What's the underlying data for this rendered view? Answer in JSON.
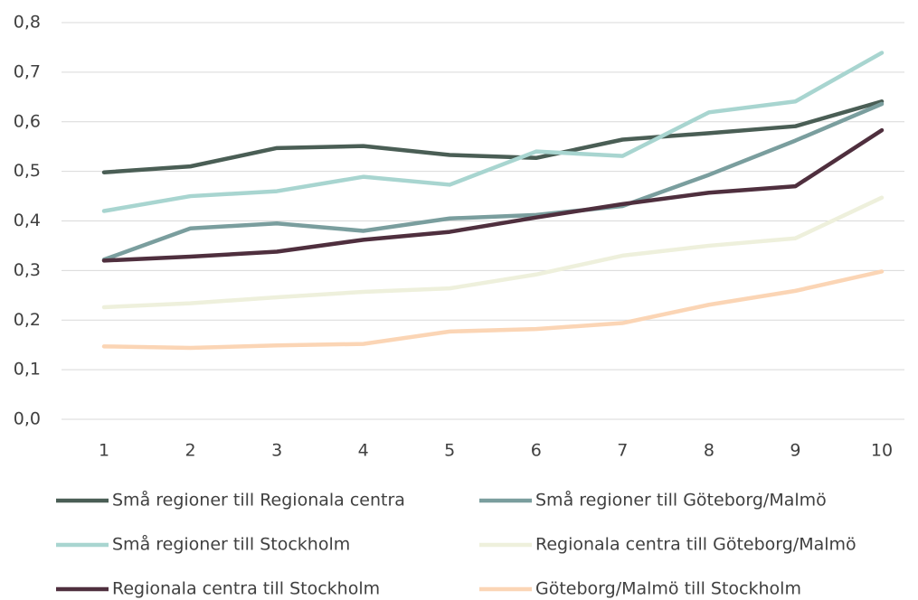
{
  "chart_data": {
    "type": "line",
    "categories": [
      "1",
      "2",
      "3",
      "4",
      "5",
      "6",
      "7",
      "8",
      "9",
      "10"
    ],
    "ylim": [
      0,
      0.8
    ],
    "yticks": [
      {
        "value": 0,
        "label": "0,0"
      },
      {
        "value": 0.1,
        "label": "0,1"
      },
      {
        "value": 0.2,
        "label": "0,2"
      },
      {
        "value": 0.3,
        "label": "0,3"
      },
      {
        "value": 0.4,
        "label": "0,4"
      },
      {
        "value": 0.5,
        "label": "0,5"
      },
      {
        "value": 0.6,
        "label": "0,6"
      },
      {
        "value": 0.7,
        "label": "0,7"
      },
      {
        "value": 0.8,
        "label": "0,8"
      }
    ],
    "grid": true,
    "series": [
      {
        "name": "Små regioner till Regionala centra",
        "color": "#4a5e55",
        "values": [
          0.498,
          0.51,
          0.547,
          0.551,
          0.533,
          0.527,
          0.564,
          0.577,
          0.591,
          0.641
        ]
      },
      {
        "name": "Små regioner till Göteborg/Malmö",
        "color": "#7a9e9e",
        "values": [
          0.322,
          0.385,
          0.395,
          0.38,
          0.405,
          0.412,
          0.43,
          0.493,
          0.562,
          0.636
        ]
      },
      {
        "name": "Små regioner till Stockholm",
        "color": "#a8d5d0",
        "values": [
          0.42,
          0.45,
          0.46,
          0.489,
          0.473,
          0.54,
          0.531,
          0.619,
          0.641,
          0.739
        ]
      },
      {
        "name": "Regionala centra till Göteborg/Malmö",
        "color": "#eef0dc",
        "values": [
          0.226,
          0.234,
          0.246,
          0.257,
          0.264,
          0.292,
          0.33,
          0.35,
          0.365,
          0.447
        ]
      },
      {
        "name": "Regionala centra till Stockholm",
        "color": "#4f2f3e",
        "values": [
          0.32,
          0.328,
          0.338,
          0.362,
          0.378,
          0.407,
          0.434,
          0.457,
          0.47,
          0.583
        ]
      },
      {
        "name": "Göteborg/Malmö till Stockholm",
        "color": "#fbd5b5",
        "values": [
          0.147,
          0.144,
          0.149,
          0.152,
          0.177,
          0.182,
          0.194,
          0.231,
          0.259,
          0.298
        ]
      }
    ]
  }
}
